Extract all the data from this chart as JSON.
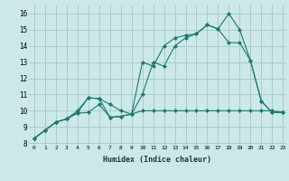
{
  "xlabel": "Humidex (Indice chaleur)",
  "bg_color": "#cce8e8",
  "grid_color": "#aacccc",
  "line_color": "#1a7a6e",
  "xlim": [
    -0.5,
    23.3
  ],
  "ylim": [
    7.9,
    16.5
  ],
  "xticks": [
    0,
    1,
    2,
    3,
    4,
    5,
    6,
    7,
    8,
    9,
    10,
    11,
    12,
    13,
    14,
    15,
    16,
    17,
    18,
    19,
    20,
    21,
    22,
    23
  ],
  "yticks": [
    8,
    9,
    10,
    11,
    12,
    13,
    14,
    15,
    16
  ],
  "s1y": [
    8.3,
    8.8,
    9.3,
    9.5,
    9.9,
    10.8,
    10.75,
    9.6,
    9.65,
    9.8,
    13.0,
    12.75,
    14.0,
    14.5,
    14.65,
    14.75,
    15.3,
    15.05,
    16.0,
    15.0,
    13.1,
    10.6,
    9.9,
    9.9
  ],
  "s2y": [
    8.3,
    8.8,
    9.3,
    9.5,
    10.0,
    10.8,
    10.75,
    10.4,
    10.0,
    9.8,
    11.0,
    13.0,
    12.75,
    14.0,
    14.5,
    14.75,
    15.3,
    15.05,
    14.2,
    14.2,
    13.1,
    10.6,
    9.9,
    9.9
  ],
  "s3y": [
    8.3,
    8.8,
    9.3,
    9.5,
    9.85,
    9.9,
    10.4,
    9.6,
    9.65,
    9.8,
    10.0,
    10.0,
    10.0,
    10.0,
    10.0,
    10.0,
    10.0,
    10.0,
    10.0,
    10.0,
    10.0,
    10.0,
    10.0,
    9.9
  ]
}
